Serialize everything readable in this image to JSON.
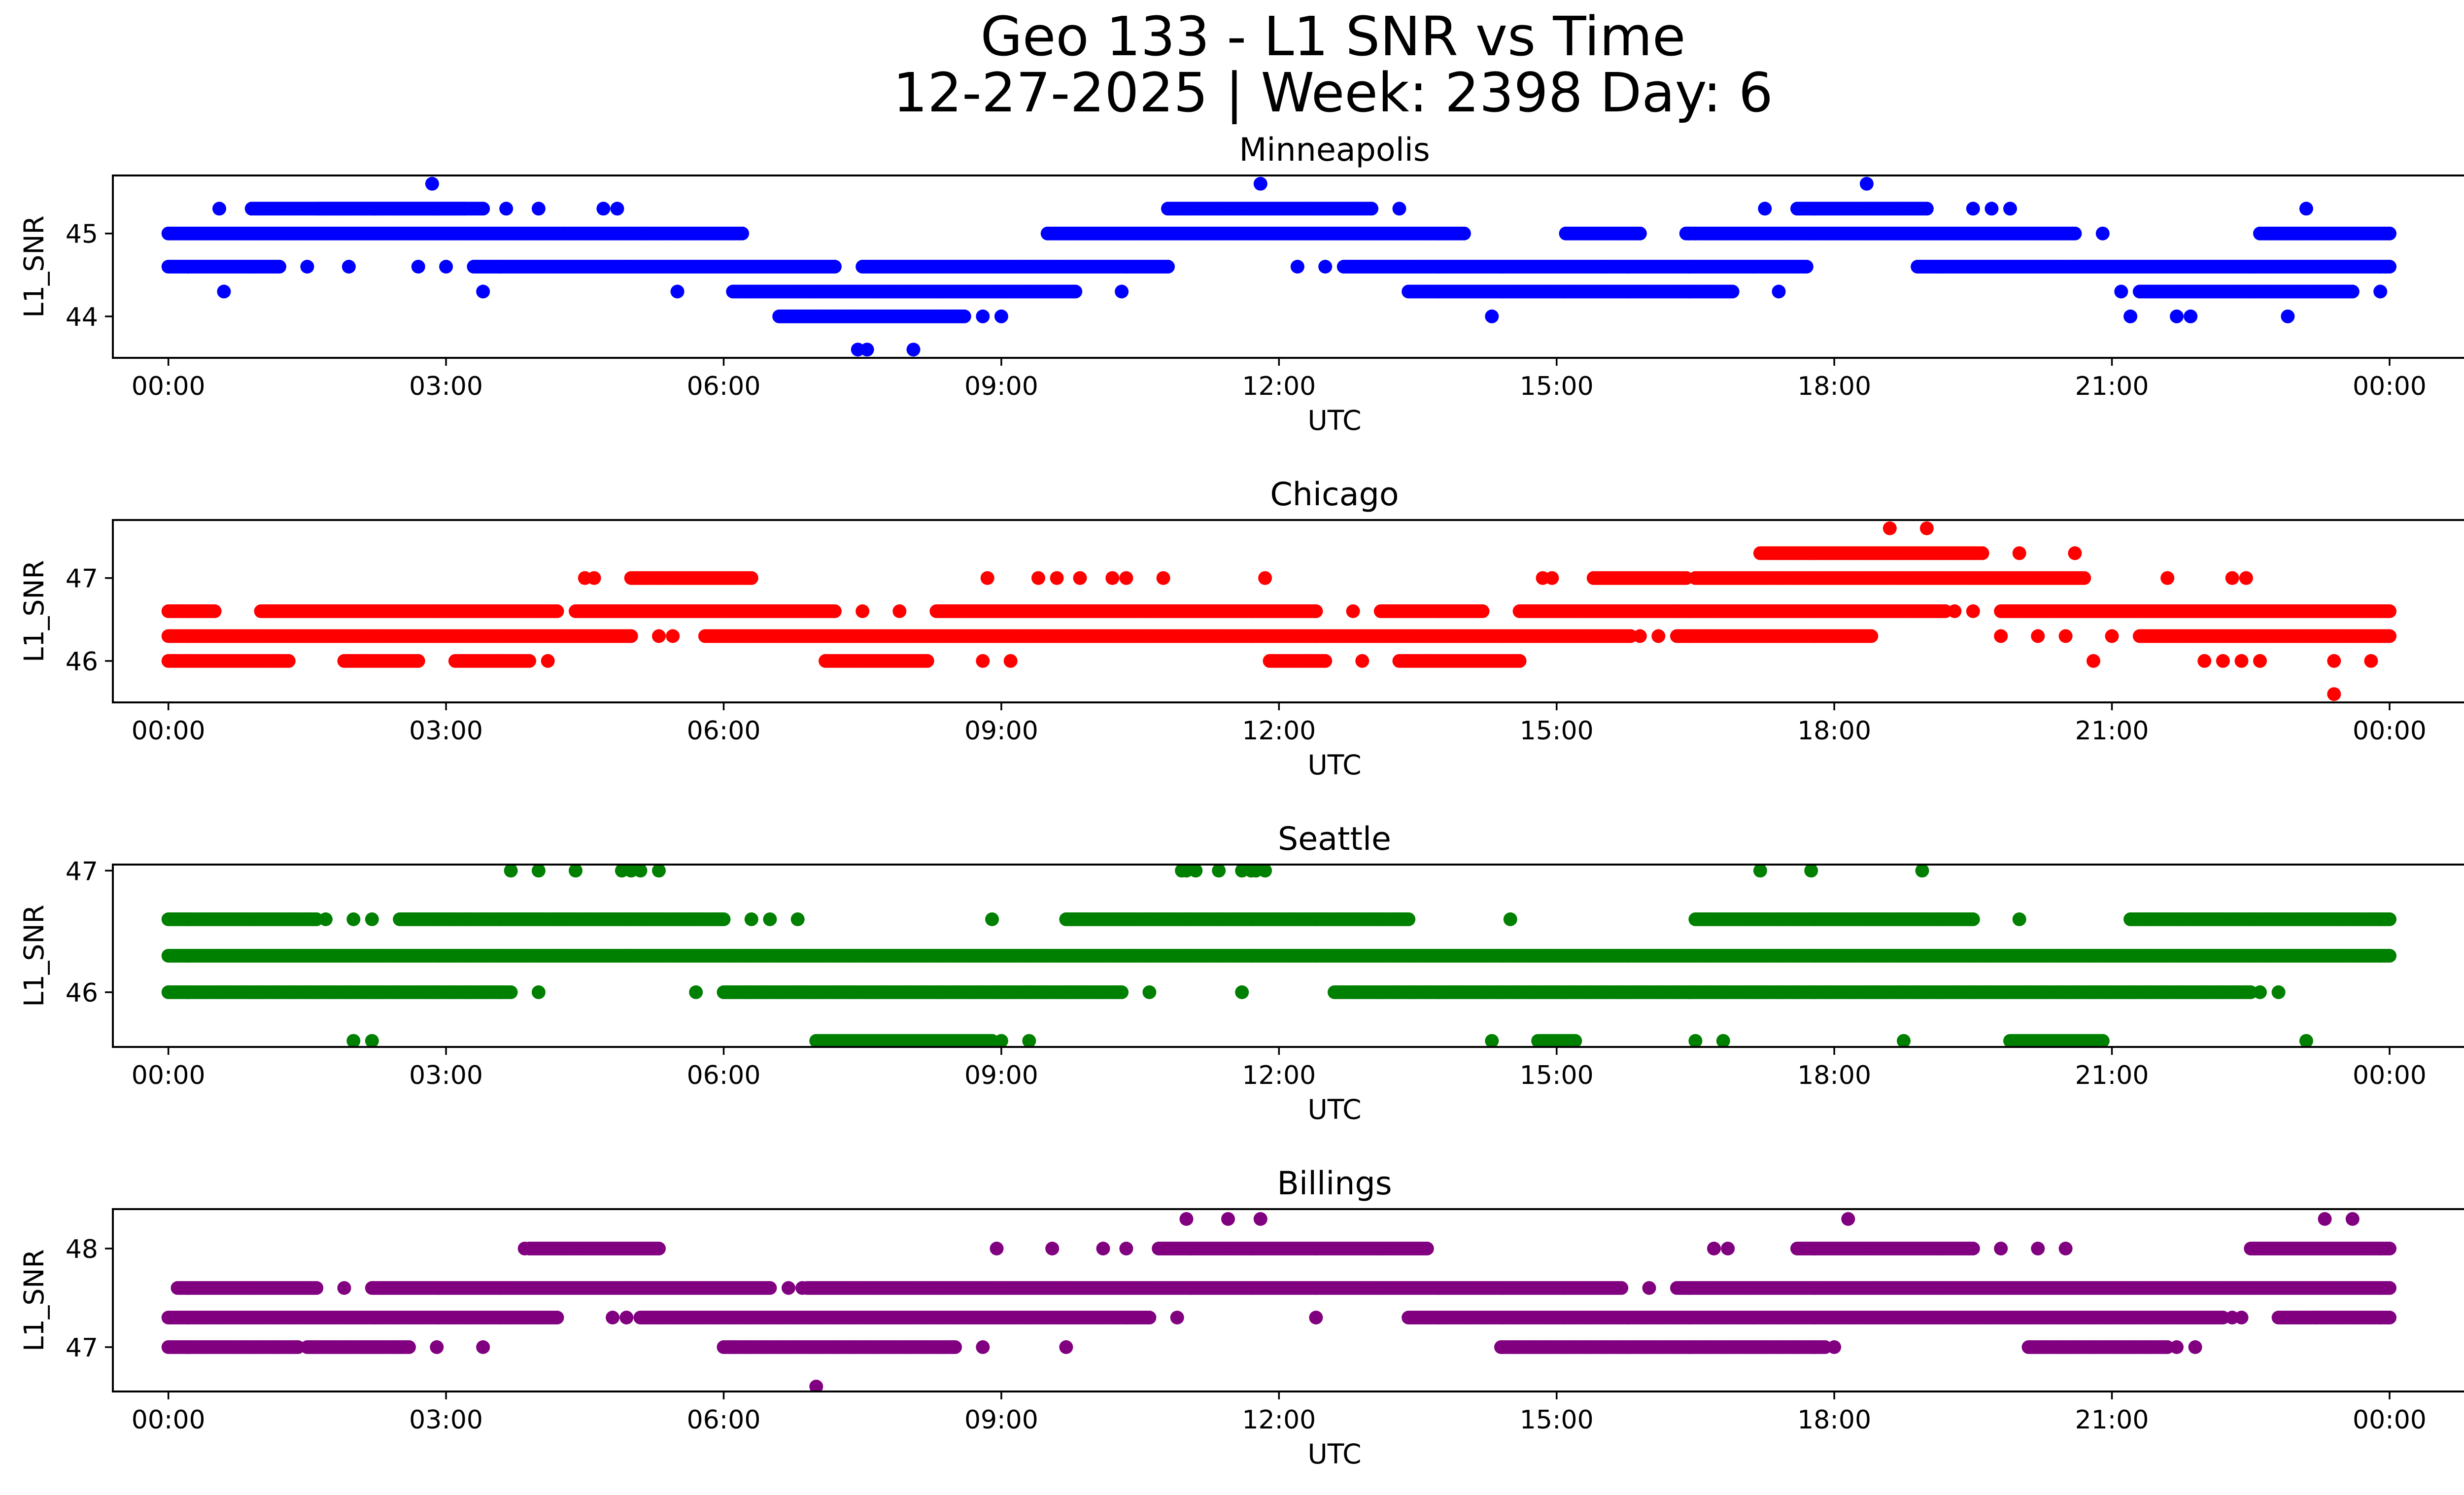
{
  "title_line1": "Geo 133 - L1 SNR vs Time",
  "title_line2": "12-27-2025 | Week: 2398 Day: 6",
  "chart_data": [
    {
      "type": "scatter",
      "title": "Minneapolis",
      "xlabel": "UTC",
      "ylabel": "L1_SNR",
      "color": "#0000ff",
      "xlim": [
        -0.6,
        25.8
      ],
      "ylim": [
        43.5,
        45.7
      ],
      "x_ticks": [
        0,
        3,
        6,
        9,
        12,
        15,
        18,
        21,
        24
      ],
      "x_tick_labels": [
        "00:00",
        "03:00",
        "06:00",
        "09:00",
        "12:00",
        "15:00",
        "18:00",
        "21:00",
        "00:00"
      ],
      "y_ticks": [
        44,
        45
      ],
      "y_tick_labels": [
        "44",
        "45"
      ],
      "grid": false,
      "runs": [
        [
          45.0,
          0.0,
          6.2
        ],
        [
          45.0,
          9.5,
          14.0
        ],
        [
          45.0,
          15.1,
          15.9
        ],
        [
          45.0,
          16.4,
          20.6
        ],
        [
          45.0,
          22.6,
          24.0
        ],
        [
          44.6,
          0.0,
          1.2
        ],
        [
          44.6,
          3.3,
          7.2
        ],
        [
          44.6,
          7.5,
          10.8
        ],
        [
          44.6,
          12.7,
          17.7
        ],
        [
          44.6,
          18.9,
          24.0
        ],
        [
          44.3,
          6.1,
          9.8
        ],
        [
          44.3,
          13.4,
          16.9
        ],
        [
          44.3,
          21.3,
          23.6
        ],
        [
          45.3,
          0.9,
          3.4
        ],
        [
          45.3,
          1.6,
          3.2
        ],
        [
          45.3,
          10.8,
          13.0
        ],
        [
          45.3,
          17.6,
          19.0
        ],
        [
          44.0,
          6.6,
          8.6
        ]
      ],
      "points": [
        [
          0.55,
          45.3
        ],
        [
          2.85,
          45.6
        ],
        [
          11.8,
          45.6
        ],
        [
          18.35,
          45.6
        ],
        [
          23.1,
          45.3
        ],
        [
          0.6,
          44.3
        ],
        [
          3.4,
          44.3
        ],
        [
          5.5,
          44.3
        ],
        [
          10.3,
          44.3
        ],
        [
          21.1,
          44.3
        ],
        [
          23.9,
          44.3
        ],
        [
          7.45,
          43.6
        ],
        [
          7.55,
          43.6
        ],
        [
          8.05,
          43.6
        ],
        [
          14.3,
          44.0
        ],
        [
          21.2,
          44.0
        ],
        [
          21.7,
          44.0
        ],
        [
          21.85,
          44.0
        ],
        [
          22.9,
          44.0
        ],
        [
          1.5,
          44.6
        ],
        [
          1.95,
          44.6
        ],
        [
          2.7,
          44.6
        ],
        [
          3.0,
          44.6
        ],
        [
          12.2,
          44.6
        ],
        [
          12.5,
          44.6
        ],
        [
          5.15,
          45.0
        ],
        [
          16.5,
          45.0
        ],
        [
          20.9,
          45.0
        ],
        [
          3.65,
          45.3
        ],
        [
          4.0,
          45.3
        ],
        [
          4.7,
          45.3
        ],
        [
          4.85,
          45.3
        ],
        [
          13.3,
          45.3
        ],
        [
          17.25,
          45.3
        ],
        [
          19.5,
          45.3
        ],
        [
          19.7,
          45.3
        ],
        [
          19.9,
          45.3
        ],
        [
          9.0,
          44.0
        ],
        [
          8.8,
          44.0
        ],
        [
          17.4,
          44.3
        ],
        [
          15.5,
          44.6
        ]
      ]
    },
    {
      "type": "scatter",
      "title": "Chicago",
      "xlabel": "UTC",
      "ylabel": "L1_SNR",
      "color": "#ff0000",
      "xlim": [
        -0.6,
        25.8
      ],
      "ylim": [
        45.5,
        47.7
      ],
      "x_ticks": [
        0,
        3,
        6,
        9,
        12,
        15,
        18,
        21,
        24
      ],
      "x_tick_labels": [
        "00:00",
        "03:00",
        "06:00",
        "09:00",
        "12:00",
        "15:00",
        "18:00",
        "21:00",
        "00:00"
      ],
      "y_ticks": [
        46,
        47
      ],
      "y_tick_labels": [
        "46",
        "47"
      ],
      "grid": false,
      "runs": [
        [
          46.3,
          0.0,
          5.0
        ],
        [
          46.3,
          5.8,
          15.8
        ],
        [
          46.3,
          16.3,
          18.4
        ],
        [
          46.3,
          21.3,
          24.0
        ],
        [
          46.6,
          0.0,
          0.5
        ],
        [
          46.6,
          1.0,
          4.2
        ],
        [
          46.6,
          4.4,
          7.2
        ],
        [
          46.6,
          8.3,
          12.4
        ],
        [
          46.6,
          13.1,
          14.2
        ],
        [
          46.6,
          14.6,
          19.2
        ],
        [
          46.6,
          19.8,
          24.0
        ],
        [
          46.0,
          0.0,
          1.3
        ],
        [
          46.0,
          1.9,
          2.7
        ],
        [
          46.0,
          3.1,
          3.9
        ],
        [
          46.0,
          7.1,
          8.2
        ],
        [
          46.0,
          11.9,
          12.5
        ],
        [
          46.0,
          13.3,
          14.6
        ],
        [
          47.0,
          5.0,
          6.3
        ],
        [
          47.0,
          15.4,
          16.4
        ],
        [
          47.0,
          16.5,
          20.7
        ],
        [
          47.3,
          17.2,
          19.6
        ]
      ],
      "points": [
        [
          0.15,
          46.6
        ],
        [
          0.35,
          46.6
        ],
        [
          4.5,
          47.0
        ],
        [
          4.6,
          47.0
        ],
        [
          8.85,
          47.0
        ],
        [
          9.4,
          47.0
        ],
        [
          9.6,
          47.0
        ],
        [
          9.85,
          47.0
        ],
        [
          10.2,
          47.0
        ],
        [
          10.35,
          47.0
        ],
        [
          10.75,
          47.0
        ],
        [
          11.85,
          47.0
        ],
        [
          14.85,
          47.0
        ],
        [
          14.95,
          47.0
        ],
        [
          21.6,
          47.0
        ],
        [
          22.3,
          47.0
        ],
        [
          22.45,
          47.0
        ],
        [
          18.6,
          47.6
        ],
        [
          19.0,
          47.6
        ],
        [
          20.0,
          47.3
        ],
        [
          20.6,
          47.3
        ],
        [
          4.1,
          46.0
        ],
        [
          8.8,
          46.0
        ],
        [
          9.1,
          46.0
        ],
        [
          12.9,
          46.0
        ],
        [
          20.8,
          46.0
        ],
        [
          22.0,
          46.0
        ],
        [
          22.2,
          46.0
        ],
        [
          22.4,
          46.0
        ],
        [
          22.6,
          46.0
        ],
        [
          23.4,
          46.0
        ],
        [
          23.8,
          46.0
        ],
        [
          5.3,
          46.3
        ],
        [
          5.45,
          46.3
        ],
        [
          15.9,
          46.3
        ],
        [
          16.1,
          46.3
        ],
        [
          16.65,
          46.3
        ],
        [
          19.8,
          46.3
        ],
        [
          20.2,
          46.3
        ],
        [
          20.5,
          46.3
        ],
        [
          21.0,
          46.3
        ],
        [
          19.3,
          46.6
        ],
        [
          19.5,
          46.6
        ],
        [
          16.3,
          46.6
        ],
        [
          12.8,
          46.6
        ],
        [
          7.5,
          46.6
        ],
        [
          7.9,
          46.6
        ],
        [
          23.4,
          45.6
        ]
      ]
    },
    {
      "type": "scatter",
      "title": "Seattle",
      "xlabel": "UTC",
      "ylabel": "L1_SNR",
      "color": "#008000",
      "xlim": [
        -0.6,
        25.8
      ],
      "ylim": [
        45.55,
        47.05
      ],
      "x_ticks": [
        0,
        3,
        6,
        9,
        12,
        15,
        18,
        21,
        24
      ],
      "x_tick_labels": [
        "00:00",
        "03:00",
        "06:00",
        "09:00",
        "12:00",
        "15:00",
        "18:00",
        "21:00",
        "00:00"
      ],
      "y_ticks": [
        46,
        47
      ],
      "y_tick_labels": [
        "46",
        "47"
      ],
      "grid": false,
      "runs": [
        [
          46.3,
          0.0,
          24.0
        ],
        [
          46.6,
          0.0,
          1.6
        ],
        [
          46.6,
          2.5,
          6.0
        ],
        [
          46.6,
          9.7,
          13.4
        ],
        [
          46.6,
          16.5,
          19.5
        ],
        [
          46.6,
          21.2,
          24.0
        ],
        [
          46.0,
          0.0,
          3.7
        ],
        [
          46.0,
          6.0,
          10.3
        ],
        [
          46.0,
          12.6,
          22.5
        ],
        [
          45.6,
          7.0,
          8.9
        ],
        [
          45.6,
          14.8,
          15.2
        ],
        [
          45.6,
          19.9,
          20.9
        ]
      ],
      "points": [
        [
          1.7,
          46.6
        ],
        [
          2.0,
          46.6
        ],
        [
          2.2,
          46.6
        ],
        [
          6.3,
          46.6
        ],
        [
          6.5,
          46.6
        ],
        [
          6.8,
          46.6
        ],
        [
          8.9,
          46.6
        ],
        [
          14.5,
          46.6
        ],
        [
          20.0,
          46.6
        ],
        [
          21.4,
          46.6
        ],
        [
          3.7,
          47.0
        ],
        [
          4.0,
          47.0
        ],
        [
          4.4,
          47.0
        ],
        [
          4.9,
          47.0
        ],
        [
          5.0,
          47.0
        ],
        [
          5.1,
          47.0
        ],
        [
          5.3,
          47.0
        ],
        [
          10.95,
          47.0
        ],
        [
          11.0,
          47.0
        ],
        [
          11.1,
          47.0
        ],
        [
          11.35,
          47.0
        ],
        [
          11.6,
          47.0
        ],
        [
          11.7,
          47.0
        ],
        [
          11.75,
          47.0
        ],
        [
          11.85,
          47.0
        ],
        [
          17.2,
          47.0
        ],
        [
          17.75,
          47.0
        ],
        [
          18.95,
          47.0
        ],
        [
          2.0,
          45.6
        ],
        [
          2.2,
          45.6
        ],
        [
          9.0,
          45.6
        ],
        [
          9.3,
          45.6
        ],
        [
          14.3,
          45.6
        ],
        [
          16.5,
          45.6
        ],
        [
          16.8,
          45.6
        ],
        [
          18.75,
          45.6
        ],
        [
          23.1,
          45.6
        ],
        [
          4.0,
          46.0
        ],
        [
          5.7,
          46.0
        ],
        [
          10.6,
          46.0
        ],
        [
          11.6,
          46.0
        ],
        [
          22.6,
          46.0
        ],
        [
          22.8,
          46.0
        ]
      ]
    },
    {
      "type": "scatter",
      "title": "Billings",
      "xlabel": "UTC",
      "ylabel": "L1_SNR",
      "color": "#800080",
      "xlim": [
        -0.6,
        25.8
      ],
      "ylim": [
        46.55,
        48.4
      ],
      "x_ticks": [
        0,
        3,
        6,
        9,
        12,
        15,
        18,
        21,
        24
      ],
      "x_tick_labels": [
        "00:00",
        "03:00",
        "06:00",
        "09:00",
        "12:00",
        "15:00",
        "18:00",
        "21:00",
        "00:00"
      ],
      "y_ticks": [
        47,
        48
      ],
      "y_tick_labels": [
        "47",
        "48"
      ],
      "grid": false,
      "runs": [
        [
          47.3,
          0.0,
          4.2
        ],
        [
          47.3,
          5.1,
          10.6
        ],
        [
          47.3,
          13.4,
          22.2
        ],
        [
          47.3,
          22.8,
          24.0
        ],
        [
          47.6,
          0.1,
          1.6
        ],
        [
          47.6,
          2.2,
          6.5
        ],
        [
          47.6,
          6.9,
          15.7
        ],
        [
          47.6,
          16.3,
          24.0
        ],
        [
          47.0,
          0.0,
          1.4
        ],
        [
          47.0,
          1.5,
          2.6
        ],
        [
          47.0,
          6.0,
          8.5
        ],
        [
          47.0,
          14.4,
          17.9
        ],
        [
          47.0,
          20.1,
          21.6
        ],
        [
          48.0,
          3.9,
          5.3
        ],
        [
          48.0,
          10.7,
          13.6
        ],
        [
          48.0,
          17.6,
          19.5
        ],
        [
          48.0,
          22.5,
          24.0
        ]
      ],
      "points": [
        [
          2.9,
          47.0
        ],
        [
          3.4,
          47.0
        ],
        [
          8.8,
          47.0
        ],
        [
          9.7,
          47.0
        ],
        [
          18.0,
          47.0
        ],
        [
          21.7,
          47.0
        ],
        [
          21.9,
          47.0
        ],
        [
          3.85,
          48.0
        ],
        [
          8.95,
          48.0
        ],
        [
          9.55,
          48.0
        ],
        [
          10.1,
          48.0
        ],
        [
          10.35,
          48.0
        ],
        [
          16.7,
          48.0
        ],
        [
          16.85,
          48.0
        ],
        [
          19.8,
          48.0
        ],
        [
          20.2,
          48.0
        ],
        [
          20.5,
          48.0
        ],
        [
          11.0,
          48.3
        ],
        [
          11.45,
          48.3
        ],
        [
          11.8,
          48.3
        ],
        [
          18.15,
          48.3
        ],
        [
          23.3,
          48.3
        ],
        [
          23.6,
          48.3
        ],
        [
          4.8,
          47.3
        ],
        [
          4.95,
          47.3
        ],
        [
          10.9,
          47.3
        ],
        [
          12.4,
          47.3
        ],
        [
          22.4,
          47.3
        ],
        [
          22.3,
          47.3
        ],
        [
          23.2,
          47.3
        ],
        [
          1.9,
          47.6
        ],
        [
          6.7,
          47.6
        ],
        [
          6.85,
          47.6
        ],
        [
          16.0,
          47.6
        ],
        [
          7.0,
          46.6
        ]
      ]
    }
  ]
}
